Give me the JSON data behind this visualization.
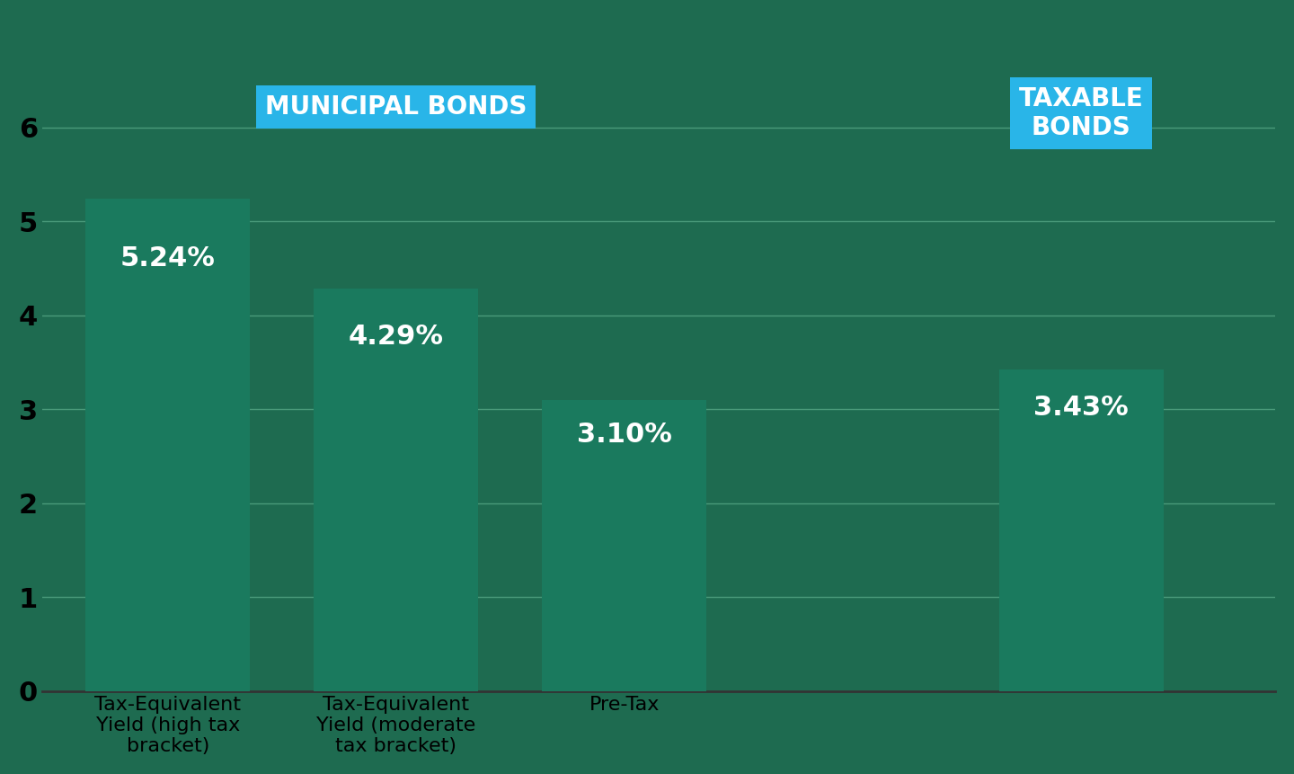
{
  "categories": [
    "Tax-Equivalent\nYield (high tax\nbracket)",
    "Tax-Equivalent\nYield (moderate\ntax bracket)",
    "Pre-Tax",
    ""
  ],
  "values": [
    5.24,
    4.29,
    3.1,
    3.43
  ],
  "labels": [
    "5.24%",
    "4.29%",
    "3.10%",
    "3.43%"
  ],
  "bar_colors": [
    "#1a7a5e",
    "#1a7a5e",
    "#1a7a5e",
    "#1a7a5e"
  ],
  "background_color": "#1e6b50",
  "ylim": [
    0,
    6.5
  ],
  "yticks": [
    0,
    1,
    2,
    3,
    4,
    5,
    6
  ],
  "grid_color": "#4a9a7a",
  "bar_positions": [
    0,
    1,
    2,
    4
  ],
  "muni_label": "MUNICIPAL BONDS",
  "muni_box_color": "#29b5e8",
  "taxable_label": "TAXABLE\nBONDS",
  "taxable_box_color": "#29b5e8",
  "label_text_color": "#ffffff",
  "label_fontsize": 20,
  "tick_fontsize": 22,
  "value_fontsize": 22,
  "xlabel_fontsize": 16,
  "bar_width": 0.72,
  "xlim": [
    -0.55,
    4.85
  ]
}
